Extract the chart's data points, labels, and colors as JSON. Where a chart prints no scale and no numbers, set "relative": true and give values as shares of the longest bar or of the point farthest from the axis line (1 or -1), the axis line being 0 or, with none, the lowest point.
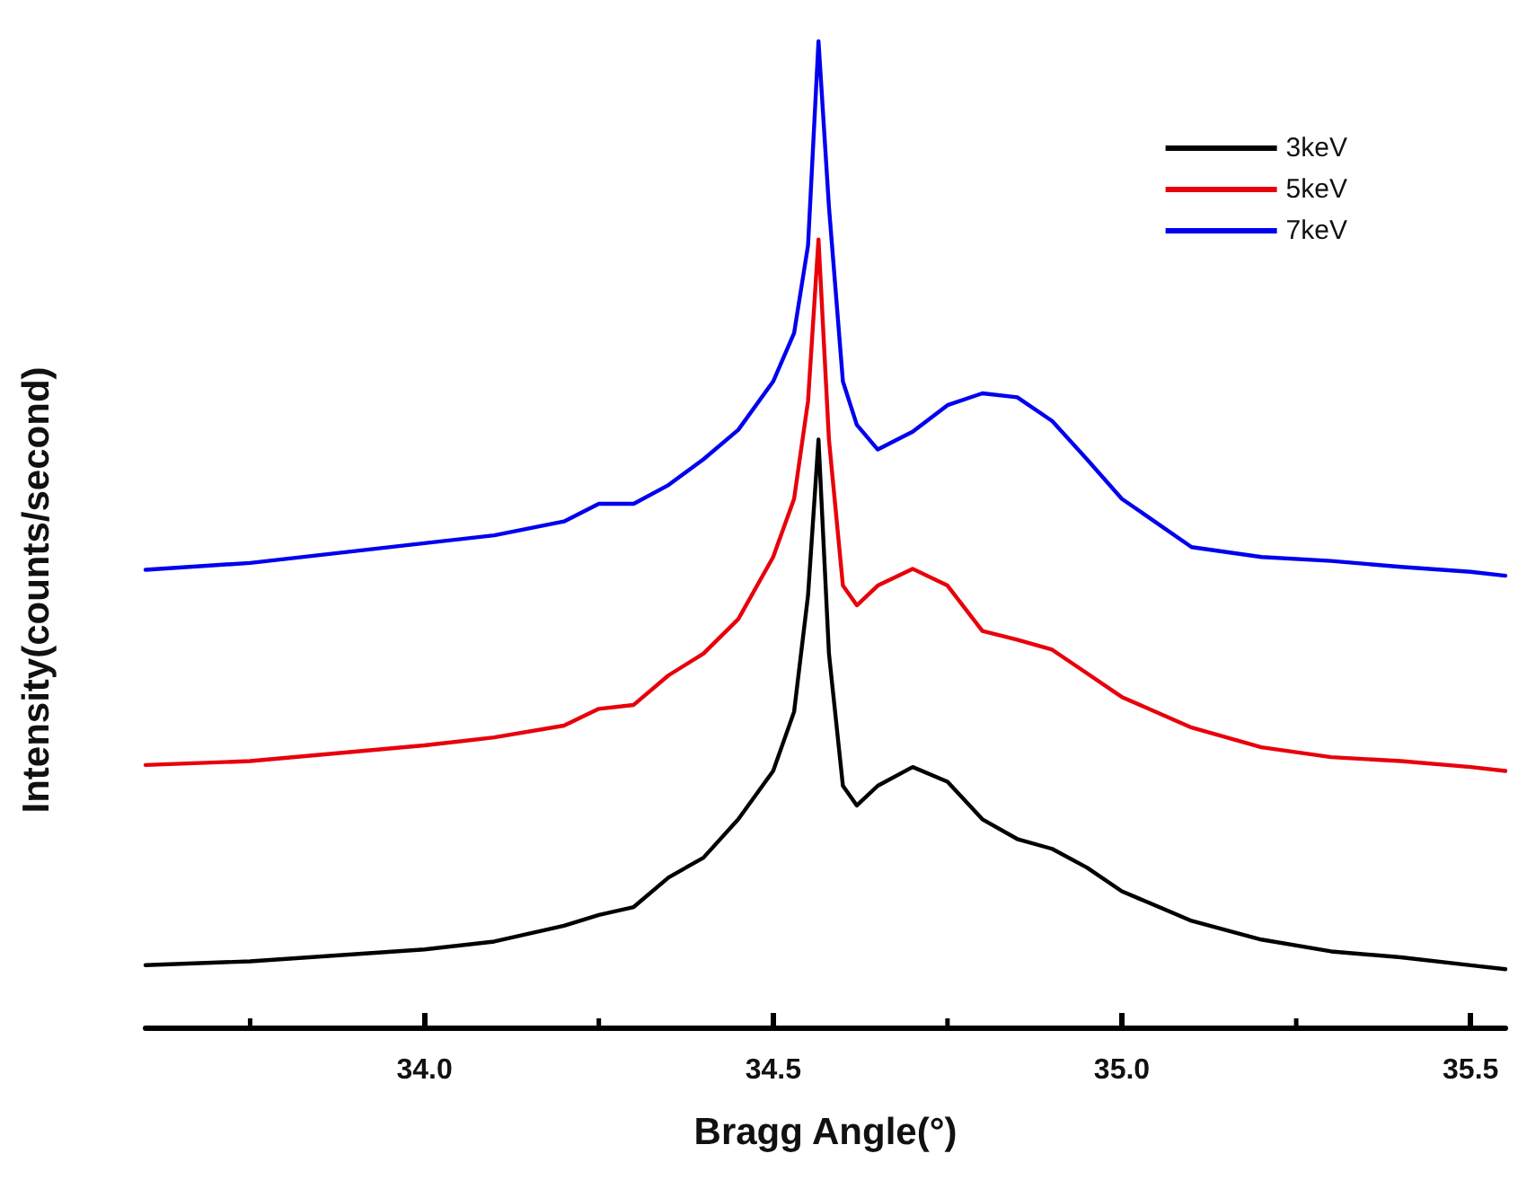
{
  "chart_data": {
    "type": "line",
    "xlabel": "Bragg Angle(°)",
    "ylabel": "Intensity(counts/second)",
    "relative": true,
    "legend": "top right",
    "grid": false,
    "marker": "none",
    "line_style": "solid",
    "xlim": [
      33.6,
      35.55
    ],
    "xticks": [
      {
        "value": 33.75,
        "label": null
      },
      {
        "value": 34,
        "label": "34.0"
      },
      {
        "value": 34.25,
        "label": null
      },
      34.5,
      {
        "value": 34.75,
        "label": null
      },
      {
        "value": 35,
        "label": "35.0"
      },
      {
        "value": 35.25,
        "label": null
      },
      35.5
    ],
    "x": [
      33.6,
      33.75,
      34.0,
      34.1,
      34.2,
      34.25,
      34.3,
      34.35,
      34.4,
      34.45,
      34.5,
      34.53,
      34.55,
      34.565,
      34.58,
      34.6,
      34.62,
      34.65,
      34.7,
      34.75,
      34.8,
      34.85,
      34.9,
      34.95,
      35.0,
      35.1,
      35.2,
      35.3,
      35.4,
      35.5,
      35.55
    ],
    "series": [
      {
        "name": "3keV",
        "color": "#000000",
        "values": [
          0.063,
          0.067,
          0.079,
          0.087,
          0.103,
          0.114,
          0.122,
          0.152,
          0.172,
          0.211,
          0.26,
          0.32,
          0.438,
          0.596,
          0.379,
          0.245,
          0.225,
          0.245,
          0.264,
          0.249,
          0.211,
          0.191,
          0.181,
          0.162,
          0.138,
          0.108,
          0.089,
          0.077,
          0.071,
          0.063,
          0.059
        ]
      },
      {
        "name": "5keV",
        "color": "#e8000b",
        "values": [
          0.266,
          0.27,
          0.286,
          0.294,
          0.306,
          0.323,
          0.327,
          0.357,
          0.379,
          0.414,
          0.477,
          0.536,
          0.635,
          0.799,
          0.596,
          0.448,
          0.428,
          0.448,
          0.465,
          0.448,
          0.402,
          0.393,
          0.383,
          0.359,
          0.335,
          0.304,
          0.284,
          0.274,
          0.27,
          0.264,
          0.26
        ]
      },
      {
        "name": "7keV",
        "color": "#0000ee",
        "values": [
          0.464,
          0.471,
          0.491,
          0.499,
          0.513,
          0.531,
          0.531,
          0.55,
          0.576,
          0.606,
          0.655,
          0.704,
          0.793,
          1,
          0.832,
          0.655,
          0.611,
          0.586,
          0.604,
          0.631,
          0.643,
          0.639,
          0.615,
          0.576,
          0.536,
          0.487,
          0.477,
          0.473,
          0.467,
          0.462,
          0.458
        ]
      }
    ]
  }
}
